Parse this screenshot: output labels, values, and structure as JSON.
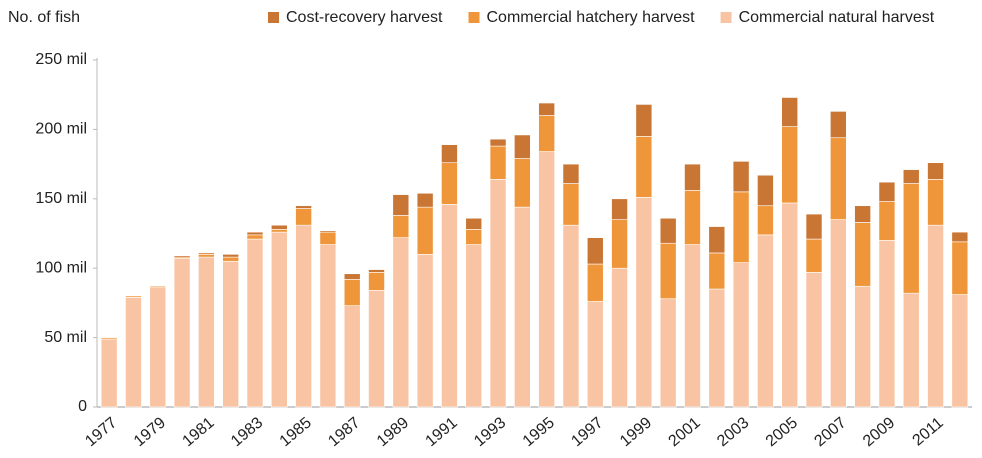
{
  "chart_data": {
    "type": "stacked_bar",
    "y_axis_label": "No. of fish",
    "categories": [
      "1977",
      null,
      "1979",
      null,
      "1981",
      null,
      "1983",
      null,
      "1985",
      null,
      "1987",
      null,
      "1989",
      null,
      "1991",
      null,
      "1993",
      null,
      "1995",
      null,
      "1997",
      null,
      "1999",
      null,
      "2001",
      null,
      "2003",
      null,
      "2005",
      null,
      "2007",
      null,
      "2009",
      null,
      "2011",
      null
    ],
    "series": [
      {
        "name": "Commercial natural harvest",
        "color": "#f9c4a3",
        "values": [
          49,
          79,
          86,
          107,
          108,
          105,
          121,
          126,
          131,
          117,
          73,
          84,
          122,
          110,
          146,
          117,
          164,
          144,
          184,
          131,
          76,
          100,
          151,
          78,
          117,
          85,
          104,
          124,
          147,
          97,
          135,
          87,
          120,
          82,
          131,
          81
        ]
      },
      {
        "name": "Commercial hatchery harvest",
        "color": "#f0963a",
        "values": [
          1,
          1,
          1,
          1,
          2,
          3,
          3,
          2,
          12,
          9,
          19,
          13,
          16,
          34,
          30,
          11,
          24,
          35,
          26,
          30,
          27,
          35,
          44,
          40,
          39,
          26,
          51,
          21,
          55,
          24,
          59,
          46,
          28,
          79,
          33,
          38
        ]
      },
      {
        "name": "Cost-recovery harvest",
        "color": "#c97533",
        "values": [
          0,
          0,
          0,
          1,
          1,
          2,
          2,
          3,
          2,
          1,
          4,
          2,
          15,
          10,
          13,
          8,
          5,
          17,
          9,
          14,
          19,
          15,
          23,
          18,
          19,
          19,
          22,
          22,
          21,
          18,
          19,
          12,
          14,
          10,
          12,
          7
        ]
      }
    ],
    "ylim": [
      0,
      250
    ],
    "yticks": [
      0,
      {
        "value": 50,
        "label": "50 mil"
      },
      {
        "value": 100,
        "label": "100 mil"
      },
      {
        "value": 150,
        "label": "150 mil"
      },
      {
        "value": 200,
        "label": "200 mil"
      },
      {
        "value": 250,
        "label": "250 mil"
      }
    ]
  }
}
